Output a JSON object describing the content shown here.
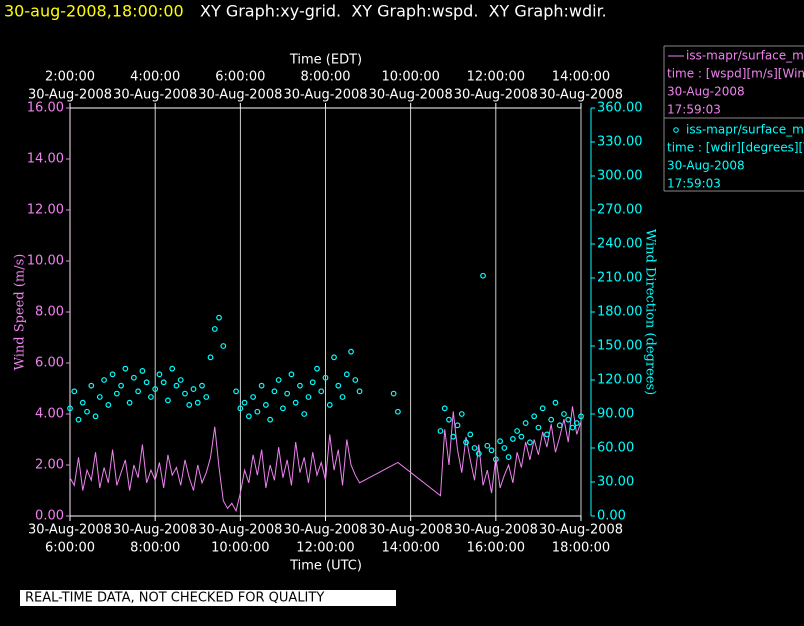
{
  "chart_data": {
    "type": "line",
    "title": "30-aug-2008,18:00:00",
    "subtitle": "XY Graph:xy-grid.  XY Graph:wspd.  XY Graph:wdir.",
    "annotation": "REAL-TIME DATA, NOT CHECKED FOR QUALITY",
    "x_label": "Time (UTC)",
    "x2_label": "Time (EDT)",
    "y_label": "Wind Speed (m/s)",
    "y2_label": "Wind Direction (degrees)",
    "grid": true,
    "xlim": [
      6,
      18
    ],
    "xticks": [
      {
        "value": 6,
        "label": "6:00:00",
        "date": "30-Aug-2008"
      },
      {
        "value": 8,
        "label": "8:00:00",
        "date": "30-Aug-2008"
      },
      {
        "value": 10,
        "label": "10:00:00",
        "date": "30-Aug-2008"
      },
      {
        "value": 12,
        "label": "12:00:00",
        "date": "30-Aug-2008"
      },
      {
        "value": 14,
        "label": "14:00:00",
        "date": "30-Aug-2008"
      },
      {
        "value": 16,
        "label": "16:00:00",
        "date": "30-Aug-2008"
      },
      {
        "value": 18,
        "label": "18:00:00",
        "date": "30-Aug-2008"
      }
    ],
    "x2lim": [
      2,
      14
    ],
    "x2ticks": [
      {
        "value": 2,
        "label": "2:00:00",
        "date": "30-Aug-2008"
      },
      {
        "value": 4,
        "label": "4:00:00",
        "date": "30-Aug-2008"
      },
      {
        "value": 6,
        "label": "6:00:00",
        "date": "30-Aug-2008"
      },
      {
        "value": 8,
        "label": "8:00:00",
        "date": "30-Aug-2008"
      },
      {
        "value": 10,
        "label": "10:00:00",
        "date": "30-Aug-2008"
      },
      {
        "value": 12,
        "label": "12:00:00",
        "date": "30-Aug-2008"
      },
      {
        "value": 14,
        "label": "14:00:00",
        "date": "30-Aug-2008"
      }
    ],
    "ylim": [
      0,
      16
    ],
    "yticks": [
      {
        "value": 0,
        "label": "0.00"
      },
      {
        "value": 2,
        "label": "2.00"
      },
      {
        "value": 4,
        "label": "4.00"
      },
      {
        "value": 6,
        "label": "6.00"
      },
      {
        "value": 8,
        "label": "8.00"
      },
      {
        "value": 10,
        "label": "10.00"
      },
      {
        "value": 12,
        "label": "12.00"
      },
      {
        "value": 14,
        "label": "14.00"
      },
      {
        "value": 16,
        "label": "16.00"
      }
    ],
    "y2lim": [
      0,
      360
    ],
    "y2ticks": [
      {
        "value": 0,
        "label": "0.00"
      },
      {
        "value": 30,
        "label": "30.00"
      },
      {
        "value": 60,
        "label": "60.00"
      },
      {
        "value": 90,
        "label": "90.00"
      },
      {
        "value": 120,
        "label": "120.00"
      },
      {
        "value": 150,
        "label": "150.00"
      },
      {
        "value": 180,
        "label": "180.00"
      },
      {
        "value": 210,
        "label": "210.00"
      },
      {
        "value": 240,
        "label": "240.00"
      },
      {
        "value": 270,
        "label": "270.00"
      },
      {
        "value": 300,
        "label": "300.00"
      },
      {
        "value": 330,
        "label": "330.00"
      },
      {
        "value": 360,
        "label": "360.00"
      }
    ],
    "series": [
      {
        "name": "iss-mapr/surface_m",
        "legend_detail": [
          "time : [wspd][m/s][Wind",
          "30-Aug-2008",
          "17:59:03"
        ],
        "type": "line",
        "color": "#ee82ee",
        "x": [
          6.0,
          6.1,
          6.2,
          6.3,
          6.4,
          6.5,
          6.6,
          6.7,
          6.8,
          6.9,
          7.0,
          7.1,
          7.2,
          7.3,
          7.4,
          7.5,
          7.6,
          7.7,
          7.8,
          7.9,
          8.0,
          8.1,
          8.2,
          8.3,
          8.4,
          8.5,
          8.6,
          8.7,
          8.8,
          8.9,
          9.0,
          9.1,
          9.2,
          9.3,
          9.4,
          9.5,
          9.6,
          9.7,
          9.8,
          9.9,
          10.0,
          10.1,
          10.2,
          10.3,
          10.4,
          10.5,
          10.6,
          10.7,
          10.8,
          10.9,
          11.0,
          11.1,
          11.2,
          11.3,
          11.4,
          11.5,
          11.6,
          11.7,
          11.8,
          11.9,
          12.0,
          12.1,
          12.2,
          12.3,
          12.4,
          12.5,
          12.6,
          12.7,
          12.8,
          13.7,
          14.7,
          14.8,
          14.9,
          15.0,
          15.1,
          15.2,
          15.3,
          15.4,
          15.5,
          15.6,
          15.7,
          15.8,
          15.9,
          16.0,
          16.1,
          16.2,
          16.3,
          16.4,
          16.5,
          16.6,
          16.7,
          16.8,
          16.9,
          17.0,
          17.1,
          17.2,
          17.3,
          17.4,
          17.5,
          17.6,
          17.7,
          17.8,
          17.9,
          18.0
        ],
        "values": [
          1.5,
          1.2,
          2.3,
          1.0,
          1.8,
          1.4,
          2.5,
          1.1,
          1.9,
          1.3,
          2.6,
          1.2,
          1.7,
          2.2,
          1.0,
          2.0,
          1.5,
          2.8,
          1.3,
          1.8,
          1.4,
          2.1,
          1.1,
          2.4,
          1.6,
          1.9,
          1.2,
          2.2,
          1.5,
          1.0,
          2.0,
          1.3,
          1.7,
          2.3,
          3.5,
          1.9,
          0.6,
          0.3,
          0.5,
          0.2,
          0.9,
          1.8,
          1.3,
          2.4,
          1.6,
          2.6,
          1.1,
          2.0,
          1.4,
          2.7,
          1.5,
          2.2,
          1.2,
          2.9,
          1.7,
          2.3,
          1.3,
          2.5,
          1.6,
          2.1,
          1.4,
          3.2,
          1.8,
          2.6,
          1.2,
          3.0,
          2.0,
          1.6,
          1.3,
          2.1,
          0.8,
          3.4,
          2.0,
          4.1,
          2.6,
          1.7,
          3.1,
          2.2,
          1.4,
          2.8,
          1.2,
          1.8,
          0.9,
          2.3,
          1.1,
          1.6,
          2.0,
          1.3,
          2.5,
          1.9,
          2.9,
          2.2,
          3.0,
          2.4,
          3.3,
          2.7,
          3.6,
          2.5,
          3.1,
          3.8,
          2.9,
          4.3,
          3.2,
          3.7
        ]
      },
      {
        "name": "iss-mapr/surface_m",
        "legend_detail": [
          "time : [wdir][degrees][V",
          "30-Aug-2008",
          "17:59:03"
        ],
        "type": "scatter",
        "color": "#00ffff",
        "axis": "y2",
        "x": [
          6.0,
          6.1,
          6.2,
          6.3,
          6.4,
          6.5,
          6.6,
          6.7,
          6.8,
          6.9,
          7.0,
          7.1,
          7.2,
          7.3,
          7.4,
          7.5,
          7.6,
          7.7,
          7.8,
          7.9,
          8.0,
          8.1,
          8.2,
          8.3,
          8.4,
          8.5,
          8.6,
          8.7,
          8.8,
          8.9,
          9.0,
          9.1,
          9.2,
          9.3,
          9.4,
          9.5,
          9.6,
          9.9,
          10.0,
          10.1,
          10.2,
          10.3,
          10.4,
          10.5,
          10.6,
          10.7,
          10.8,
          10.9,
          11.0,
          11.1,
          11.2,
          11.3,
          11.4,
          11.5,
          11.6,
          11.7,
          11.8,
          11.9,
          12.0,
          12.1,
          12.2,
          12.3,
          12.4,
          12.5,
          12.6,
          12.7,
          12.8,
          13.6,
          13.7,
          14.7,
          14.8,
          14.9,
          15.0,
          15.1,
          15.2,
          15.3,
          15.4,
          15.5,
          15.6,
          15.7,
          15.8,
          15.9,
          16.0,
          16.1,
          16.2,
          16.3,
          16.4,
          16.5,
          16.6,
          16.7,
          16.8,
          16.9,
          17.0,
          17.1,
          17.2,
          17.3,
          17.4,
          17.5,
          17.6,
          17.7,
          17.8,
          17.9,
          18.0
        ],
        "values": [
          95,
          110,
          85,
          100,
          92,
          115,
          88,
          105,
          120,
          98,
          125,
          108,
          115,
          130,
          100,
          122,
          110,
          128,
          118,
          105,
          112,
          125,
          118,
          102,
          130,
          115,
          120,
          108,
          98,
          112,
          100,
          115,
          105,
          140,
          165,
          175,
          150,
          110,
          95,
          100,
          88,
          105,
          92,
          115,
          98,
          85,
          110,
          120,
          95,
          108,
          125,
          100,
          115,
          90,
          105,
          118,
          130,
          110,
          122,
          98,
          140,
          115,
          105,
          125,
          145,
          120,
          110,
          108,
          92,
          75,
          95,
          85,
          70,
          80,
          90,
          65,
          72,
          60,
          55,
          212,
          62,
          58,
          50,
          66,
          60,
          52,
          68,
          75,
          70,
          82,
          65,
          88,
          78,
          95,
          72,
          85,
          100,
          80,
          90,
          85,
          78,
          82,
          88
        ]
      }
    ]
  }
}
